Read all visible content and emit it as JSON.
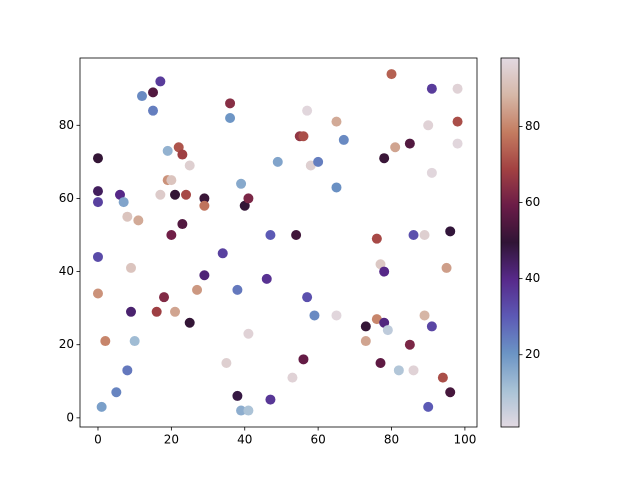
{
  "chart_data": {
    "type": "scatter",
    "x": [
      0,
      0,
      0,
      0,
      0,
      1,
      2,
      5,
      6,
      7,
      8,
      8,
      9,
      9,
      10,
      11,
      12,
      15,
      15,
      16,
      17,
      17,
      18,
      19,
      19,
      20,
      20,
      21,
      21,
      22,
      23,
      23,
      24,
      25,
      25,
      27,
      29,
      29,
      29,
      34,
      35,
      36,
      36,
      38,
      38,
      39,
      39,
      40,
      41,
      41,
      41,
      46,
      47,
      47,
      49,
      53,
      54,
      55,
      56,
      56,
      57,
      57,
      58,
      59,
      60,
      65,
      65,
      65,
      67,
      73,
      73,
      76,
      76,
      77,
      77,
      78,
      78,
      78,
      79,
      80,
      81,
      82,
      85,
      85,
      86,
      86,
      89,
      89,
      90,
      90,
      91,
      91,
      91,
      94,
      95,
      96,
      96,
      98,
      98,
      98
    ],
    "y": [
      71,
      62,
      59,
      44,
      34,
      3,
      21,
      7,
      61,
      59,
      55,
      13,
      41,
      29,
      21,
      54,
      88,
      89,
      84,
      29,
      92,
      61,
      33,
      73,
      65,
      65,
      50,
      61,
      29,
      74,
      72,
      53,
      61,
      69,
      26,
      35,
      60,
      58,
      39,
      45,
      15,
      86,
      82,
      35,
      6,
      64,
      2,
      58,
      60,
      23,
      2,
      38,
      50,
      5,
      70,
      11,
      50,
      77,
      77,
      16,
      84,
      33,
      69,
      28,
      70,
      81,
      63,
      28,
      76,
      25,
      21,
      49,
      27,
      15,
      42,
      71,
      40,
      26,
      24,
      94,
      74,
      13,
      75,
      20,
      50,
      13,
      50,
      28,
      80,
      3,
      90,
      67,
      25,
      11,
      41,
      51,
      7,
      90,
      81,
      75
    ],
    "c": [
      50,
      45,
      35,
      33,
      82,
      18,
      80,
      23,
      40,
      17,
      92,
      25,
      92,
      43,
      12,
      86,
      22,
      55,
      24,
      68,
      36,
      94,
      63,
      14,
      82,
      92,
      60,
      50,
      85,
      72,
      68,
      55,
      70,
      95,
      50,
      83,
      51,
      77,
      42,
      35,
      95,
      64,
      20,
      25,
      48,
      16,
      15,
      50,
      62,
      96,
      10,
      38,
      30,
      37,
      17,
      96,
      52,
      66,
      71,
      58,
      97,
      32,
      95,
      22,
      24,
      86,
      21,
      97,
      22,
      50,
      85,
      70,
      80,
      57,
      93,
      51,
      40,
      41,
      7,
      74,
      85,
      9,
      55,
      62,
      32,
      96,
      95,
      88,
      96,
      30,
      36,
      97,
      34,
      71,
      84,
      49,
      53,
      96,
      71,
      97
    ],
    "colormap": "twilight",
    "clim": [
      1,
      98
    ],
    "cticks": [
      20,
      40,
      60,
      80
    ],
    "xlim": [
      -4.9,
      103.3
    ],
    "ylim": [
      -2.5,
      98.4
    ],
    "xticks": [
      0,
      20,
      40,
      60,
      80,
      100
    ],
    "yticks": [
      0,
      20,
      40,
      60,
      80
    ]
  }
}
